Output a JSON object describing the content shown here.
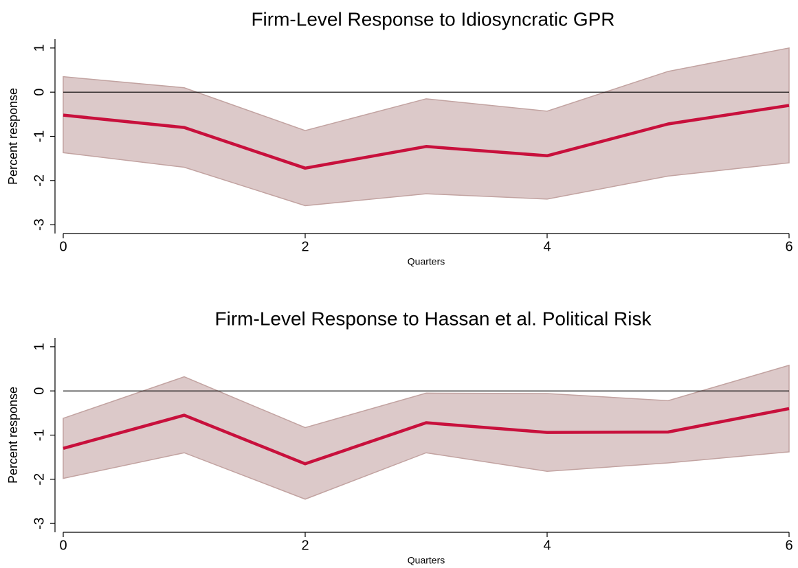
{
  "chart_data": [
    {
      "type": "line",
      "title": "Firm-Level Response to Idiosyncratic GPR",
      "xlabel": "Quarters",
      "ylabel": "Percent response",
      "x": [
        0,
        1,
        2,
        3,
        4,
        5,
        6
      ],
      "values": [
        -0.52,
        -0.8,
        -1.72,
        -1.23,
        -1.44,
        -0.72,
        -0.3
      ],
      "upper": [
        0.35,
        0.1,
        -0.87,
        -0.15,
        -0.43,
        0.47,
        1.0
      ],
      "lower": [
        -1.37,
        -1.7,
        -2.57,
        -2.3,
        -2.42,
        -1.9,
        -1.6
      ],
      "color": "#c8103c",
      "band_color": "#dcc9c9",
      "band_edge": "#c2a3a1",
      "yline": 0,
      "xlim": [
        0,
        6
      ],
      "xticks": [
        0,
        2,
        4,
        6
      ],
      "ylim": [
        -3.2,
        1.2
      ],
      "yticks": [
        -3,
        -2,
        -1,
        0,
        1
      ]
    },
    {
      "type": "line",
      "title": "Firm-Level Response to Hassan et al. Political Risk",
      "xlabel": "Quarters",
      "ylabel": "Percent response",
      "x": [
        0,
        1,
        2,
        3,
        4,
        5,
        6
      ],
      "values": [
        -1.3,
        -0.55,
        -1.65,
        -0.72,
        -0.94,
        -0.93,
        -0.4
      ],
      "upper": [
        -0.62,
        0.32,
        -0.83,
        -0.05,
        -0.06,
        -0.22,
        0.58
      ],
      "lower": [
        -1.98,
        -1.4,
        -2.45,
        -1.4,
        -1.82,
        -1.63,
        -1.38
      ],
      "color": "#c8103c",
      "band_color": "#dcc9c9",
      "band_edge": "#c2a3a1",
      "yline": 0,
      "xlim": [
        0,
        6
      ],
      "xticks": [
        0,
        2,
        4,
        6
      ],
      "ylim": [
        -3.2,
        1.2
      ],
      "yticks": [
        -3,
        -2,
        -1,
        0,
        1
      ]
    }
  ]
}
